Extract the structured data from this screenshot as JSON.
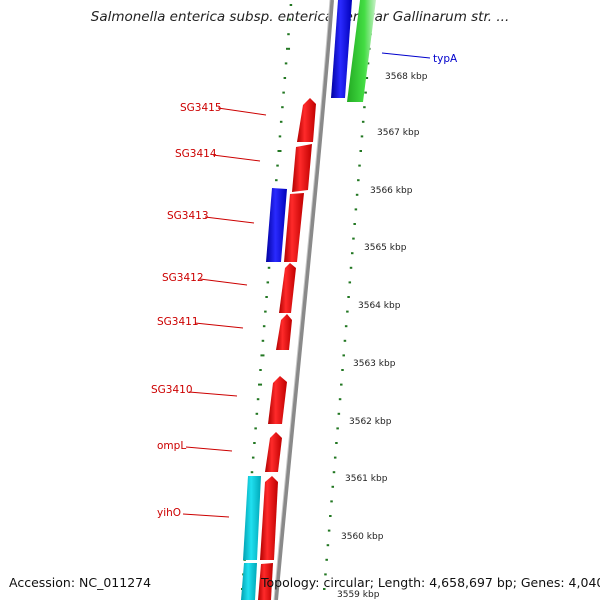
{
  "title": "Salmonella enterica subsp. enterica serovar Gallinarum str. ...",
  "accession": "Accession: NC_011274",
  "topology": "Topology: circular; Length: 4,658,697 bp; Genes: 4,040",
  "colors": {
    "forward_gene": "#e60000",
    "reverse_gene": "#0000e6",
    "rrna": "#22cc22",
    "other": "#00bcc8",
    "backbone": "#8a8a8a",
    "tick": "#227722",
    "label_red": "#cc0000",
    "label_blue": "#0000cc"
  },
  "gene_labels": [
    {
      "name": "SG3415",
      "color": "red"
    },
    {
      "name": "SG3414",
      "color": "red"
    },
    {
      "name": "SG3413",
      "color": "red"
    },
    {
      "name": "SG3412",
      "color": "red"
    },
    {
      "name": "SG3411",
      "color": "red"
    },
    {
      "name": "SG3410",
      "color": "red"
    },
    {
      "name": "ompL",
      "color": "red"
    },
    {
      "name": "yihO",
      "color": "red"
    },
    {
      "name": "typA",
      "color": "blue"
    }
  ],
  "kbp_labels": [
    "3568 kbp",
    "3567 kbp",
    "3566 kbp",
    "3565 kbp",
    "3564 kbp",
    "3563 kbp",
    "3562 kbp",
    "3561 kbp",
    "3560 kbp",
    "3559 kbp"
  ]
}
